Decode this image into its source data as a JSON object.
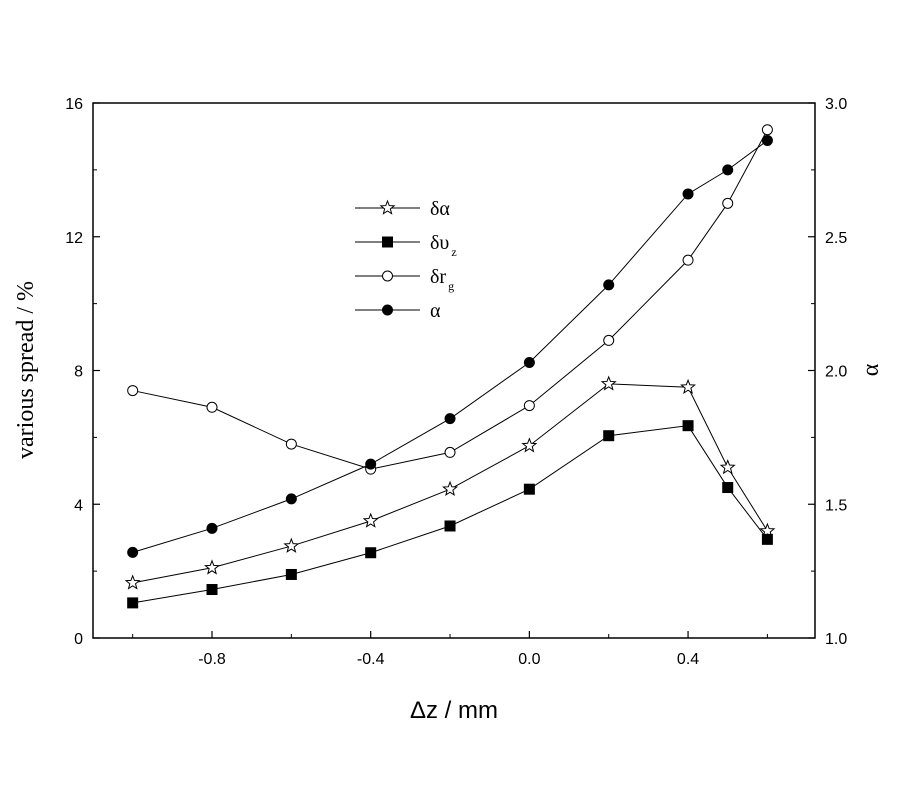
{
  "chart_data": {
    "type": "line",
    "xlabel": "Δz / mm",
    "ylabel_left": "various spread / %",
    "ylabel_right": "α",
    "xlim": [
      -1.1,
      0.72
    ],
    "ylim_left": [
      0,
      16
    ],
    "ylim_right": [
      1.0,
      3.0
    ],
    "x_ticks": [
      -0.8,
      -0.4,
      0.0,
      0.4
    ],
    "x_tick_labels": [
      "-0.8",
      "-0.4",
      "0.0",
      "0.4"
    ],
    "y_left_ticks": [
      0,
      4,
      8,
      12,
      16
    ],
    "y_left_tick_labels": [
      "0",
      "4",
      "8",
      "12",
      "16"
    ],
    "y_right_ticks": [
      1.0,
      1.5,
      2.0,
      2.5,
      3.0
    ],
    "y_right_tick_labels": [
      "1.0",
      "1.5",
      "2.0",
      "2.5",
      "3.0"
    ],
    "grid": false,
    "legend_position": "upper-left-center",
    "series": [
      {
        "name": "δα",
        "marker": "star-open",
        "axis": "left",
        "x": [
          -1.0,
          -0.8,
          -0.6,
          -0.4,
          -0.2,
          0.0,
          0.2,
          0.4,
          0.5,
          0.6
        ],
        "values": [
          1.65,
          2.1,
          2.75,
          3.5,
          4.45,
          5.75,
          7.6,
          7.5,
          5.1,
          3.2
        ]
      },
      {
        "name": "δυ",
        "name_sub": "z",
        "marker": "square-filled",
        "axis": "left",
        "x": [
          -1.0,
          -0.8,
          -0.6,
          -0.4,
          -0.2,
          0.0,
          0.2,
          0.4,
          0.5,
          0.6
        ],
        "values": [
          1.05,
          1.45,
          1.9,
          2.55,
          3.35,
          4.45,
          6.05,
          6.35,
          4.5,
          2.95
        ]
      },
      {
        "name": "δr",
        "name_sub": "g",
        "marker": "circle-open",
        "axis": "left",
        "x": [
          -1.0,
          -0.8,
          -0.6,
          -0.4,
          -0.2,
          0.0,
          0.2,
          0.4,
          0.5,
          0.6
        ],
        "values": [
          7.4,
          6.9,
          5.8,
          5.05,
          5.55,
          6.95,
          8.9,
          11.3,
          13.0,
          15.2
        ]
      },
      {
        "name": "α",
        "marker": "circle-filled",
        "axis": "right",
        "x": [
          -1.0,
          -0.8,
          -0.6,
          -0.4,
          -0.2,
          0.0,
          0.2,
          0.4,
          0.5,
          0.6
        ],
        "values": [
          1.32,
          1.41,
          1.52,
          1.65,
          1.82,
          2.03,
          2.32,
          2.66,
          2.75,
          2.86
        ]
      }
    ]
  }
}
